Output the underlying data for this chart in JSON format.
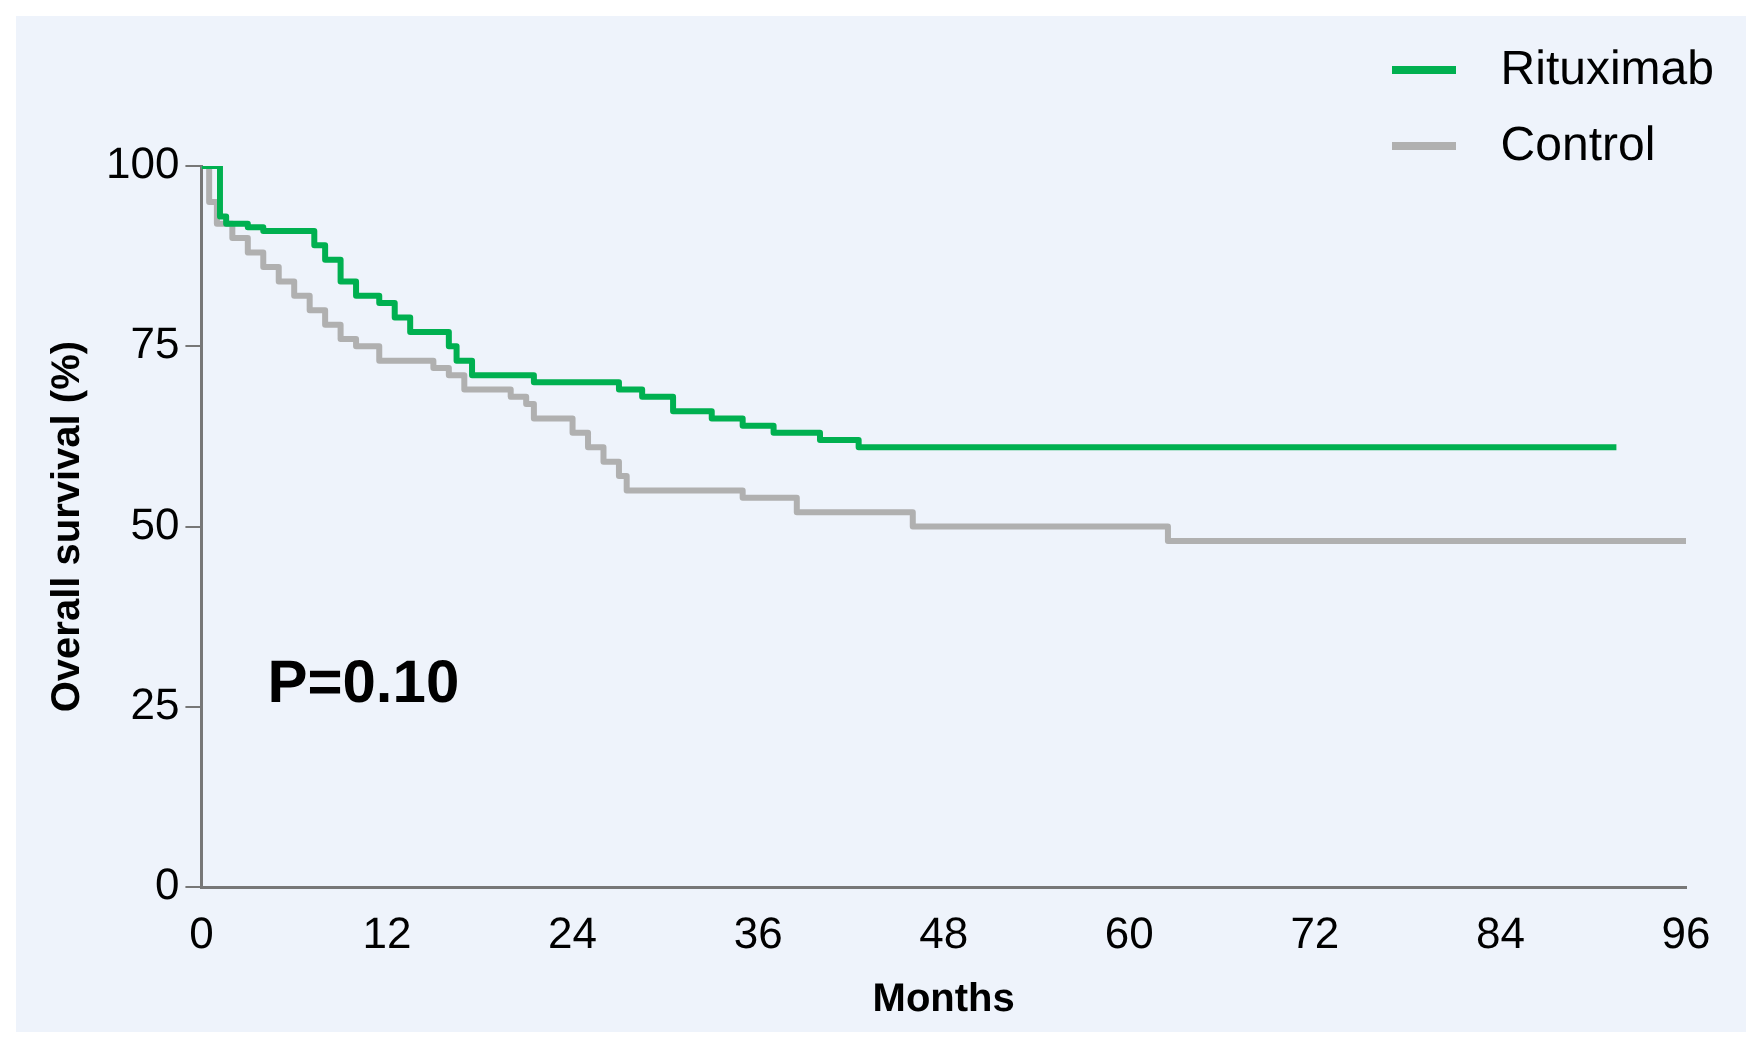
{
  "chart_data": {
    "type": "step",
    "xlabel": "Months",
    "ylabel": "Overall survival (%)",
    "series": [
      {
        "name": "Rituximab",
        "color": "#00b050",
        "x": [
          0,
          1.2,
          1.6,
          3,
          4,
          7.3,
          8,
          9,
          10,
          11.5,
          12.5,
          13.5,
          16,
          16.5,
          17.5,
          21.5,
          27,
          28.5,
          30.5,
          33,
          35,
          37,
          40,
          42.5,
          91.5
        ],
        "values": [
          100,
          93,
          92,
          91.5,
          91,
          89,
          87,
          84,
          82,
          81,
          79,
          77,
          75,
          73,
          71,
          70,
          69,
          68,
          66,
          65,
          64,
          63,
          62,
          61,
          61
        ]
      },
      {
        "name": "Control",
        "color": "#b0b0b0",
        "x": [
          0,
          0.5,
          1,
          2,
          3,
          4,
          5,
          6,
          7,
          8,
          9,
          10,
          11.5,
          15,
          16,
          17,
          20,
          21,
          21.5,
          24,
          25,
          26,
          27,
          27.5,
          35,
          38.5,
          46,
          62.5,
          96
        ],
        "values": [
          100,
          95,
          92,
          90,
          88,
          86,
          84,
          82,
          80,
          78,
          76,
          75,
          73,
          72,
          71,
          69,
          68,
          67,
          65,
          63,
          61,
          59,
          57,
          55,
          54,
          52,
          50,
          48,
          48
        ]
      }
    ],
    "xlim": [
      0,
      96
    ],
    "xticks": [
      0,
      12,
      24,
      36,
      48,
      60,
      72,
      84,
      96
    ],
    "ylim": [
      0,
      100
    ],
    "yticks": [
      0,
      25,
      50,
      75,
      100
    ],
    "grid": false,
    "legend": "top right",
    "annotations": [
      "P=0.10"
    ]
  }
}
